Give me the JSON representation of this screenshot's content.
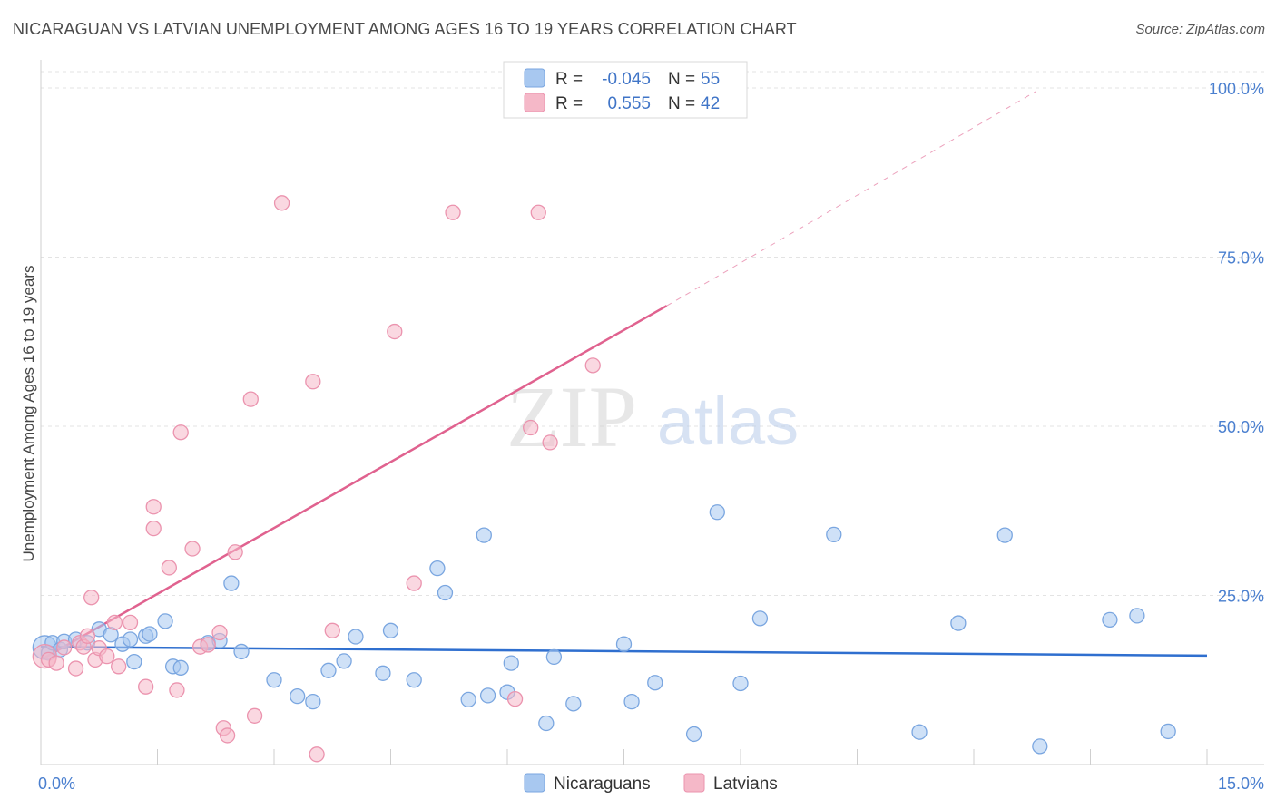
{
  "header": {
    "title": "NICARAGUAN VS LATVIAN UNEMPLOYMENT AMONG AGES 16 TO 19 YEARS CORRELATION CHART",
    "source": "Source: ZipAtlas.com"
  },
  "watermark": {
    "part1": "ZIP",
    "part2": "atlas"
  },
  "legend_top": {
    "rows": [
      {
        "r_label": "R =",
        "r_value": "-0.045",
        "n_label": "N =",
        "n_value": "55"
      },
      {
        "r_label": "R =",
        "r_value": "0.555",
        "n_label": "N =",
        "n_value": "42"
      }
    ]
  },
  "legend_bottom": {
    "items": [
      "Nicaraguans",
      "Latvians"
    ]
  },
  "colors": {
    "blue_fill": "#a8c8f0",
    "blue_stroke": "#7aa6e0",
    "blue_line": "#2f6fcf",
    "pink_fill": "#f5b8c8",
    "pink_stroke": "#eb93ae",
    "pink_line": "#e0628f",
    "tick_text": "#4a7fcf",
    "grid": "#e3e3e3"
  },
  "chart_data": {
    "type": "scatter",
    "title": "NICARAGUAN VS LATVIAN UNEMPLOYMENT AMONG AGES 16 TO 19 YEARS CORRELATION CHART",
    "xlabel": "",
    "ylabel": "Unemployment Among Ages 16 to 19 years",
    "xlim": [
      0,
      15
    ],
    "ylim": [
      0,
      100
    ],
    "x_tick_labels": [
      "0.0%",
      "15.0%"
    ],
    "y_ticks": [
      25,
      50,
      75,
      100
    ],
    "y_tick_labels": [
      "25.0%",
      "50.0%",
      "75.0%",
      "100.0%"
    ],
    "grid": true,
    "legend_position": "top-center",
    "series": [
      {
        "name": "Nicaraguans",
        "r": -0.045,
        "n": 55,
        "trend": {
          "x1": 0.0,
          "y1": 17.4,
          "x2": 15.0,
          "y2": 16.1,
          "dashed_to": null
        },
        "points": [
          [
            0.05,
            17.3
          ],
          [
            0.1,
            16.5
          ],
          [
            0.15,
            18.0
          ],
          [
            0.25,
            17.0
          ],
          [
            0.3,
            18.2
          ],
          [
            0.45,
            18.5
          ],
          [
            0.6,
            18.0
          ],
          [
            0.75,
            20.0
          ],
          [
            0.9,
            19.2
          ],
          [
            1.05,
            17.8
          ],
          [
            1.15,
            18.5
          ],
          [
            1.35,
            19.0
          ],
          [
            1.2,
            15.2
          ],
          [
            1.4,
            19.3
          ],
          [
            1.6,
            21.2
          ],
          [
            1.7,
            14.5
          ],
          [
            1.8,
            14.3
          ],
          [
            2.15,
            18.0
          ],
          [
            2.3,
            18.3
          ],
          [
            2.45,
            26.8
          ],
          [
            2.58,
            16.7
          ],
          [
            3.0,
            12.5
          ],
          [
            3.3,
            10.1
          ],
          [
            3.5,
            9.3
          ],
          [
            3.7,
            13.9
          ],
          [
            3.9,
            15.3
          ],
          [
            4.05,
            18.9
          ],
          [
            4.4,
            13.5
          ],
          [
            4.5,
            19.8
          ],
          [
            4.8,
            12.5
          ],
          [
            5.1,
            29.0
          ],
          [
            5.2,
            25.4
          ],
          [
            5.5,
            9.6
          ],
          [
            5.7,
            33.9
          ],
          [
            5.75,
            10.2
          ],
          [
            6.0,
            10.7
          ],
          [
            6.05,
            15.0
          ],
          [
            6.5,
            6.1
          ],
          [
            6.6,
            15.9
          ],
          [
            6.85,
            9.0
          ],
          [
            7.5,
            17.8
          ],
          [
            7.6,
            9.3
          ],
          [
            7.9,
            12.1
          ],
          [
            8.4,
            4.5
          ],
          [
            8.7,
            37.3
          ],
          [
            9.0,
            12.0
          ],
          [
            9.25,
            21.6
          ],
          [
            10.2,
            34.0
          ],
          [
            11.3,
            4.8
          ],
          [
            11.8,
            20.9
          ],
          [
            12.4,
            33.9
          ],
          [
            12.85,
            2.7
          ],
          [
            13.75,
            21.4
          ],
          [
            14.1,
            22.0
          ],
          [
            14.5,
            4.9
          ]
        ]
      },
      {
        "name": "Latvians",
        "r": 0.555,
        "n": 42,
        "trend": {
          "x1": 0.05,
          "y1": 15.8,
          "x2": 8.05,
          "y2": 67.8,
          "dashed_to": [
            12.8,
            99.5
          ]
        },
        "points": [
          [
            0.05,
            16.0
          ],
          [
            0.1,
            15.5
          ],
          [
            0.2,
            15.0
          ],
          [
            0.3,
            17.3
          ],
          [
            0.45,
            14.2
          ],
          [
            0.5,
            18.0
          ],
          [
            0.55,
            17.4
          ],
          [
            0.6,
            19.0
          ],
          [
            0.7,
            15.5
          ],
          [
            0.75,
            17.2
          ],
          [
            0.85,
            16.0
          ],
          [
            0.95,
            21.0
          ],
          [
            1.0,
            14.5
          ],
          [
            0.65,
            24.7
          ],
          [
            1.15,
            21.0
          ],
          [
            1.35,
            11.5
          ],
          [
            1.45,
            34.9
          ],
          [
            1.45,
            38.1
          ],
          [
            1.65,
            29.1
          ],
          [
            1.75,
            11.0
          ],
          [
            1.8,
            49.1
          ],
          [
            1.95,
            31.9
          ],
          [
            2.05,
            17.4
          ],
          [
            2.15,
            17.7
          ],
          [
            2.3,
            19.5
          ],
          [
            2.35,
            5.4
          ],
          [
            2.4,
            4.3
          ],
          [
            2.5,
            31.4
          ],
          [
            2.7,
            54.0
          ],
          [
            2.75,
            7.2
          ],
          [
            3.1,
            83.0
          ],
          [
            3.5,
            56.6
          ],
          [
            3.55,
            1.5
          ],
          [
            3.75,
            19.8
          ],
          [
            4.55,
            64.0
          ],
          [
            4.8,
            26.8
          ],
          [
            5.3,
            81.6
          ],
          [
            6.1,
            9.7
          ],
          [
            6.3,
            49.8
          ],
          [
            6.4,
            81.6
          ],
          [
            6.55,
            47.6
          ],
          [
            7.1,
            59.0
          ]
        ]
      }
    ]
  }
}
